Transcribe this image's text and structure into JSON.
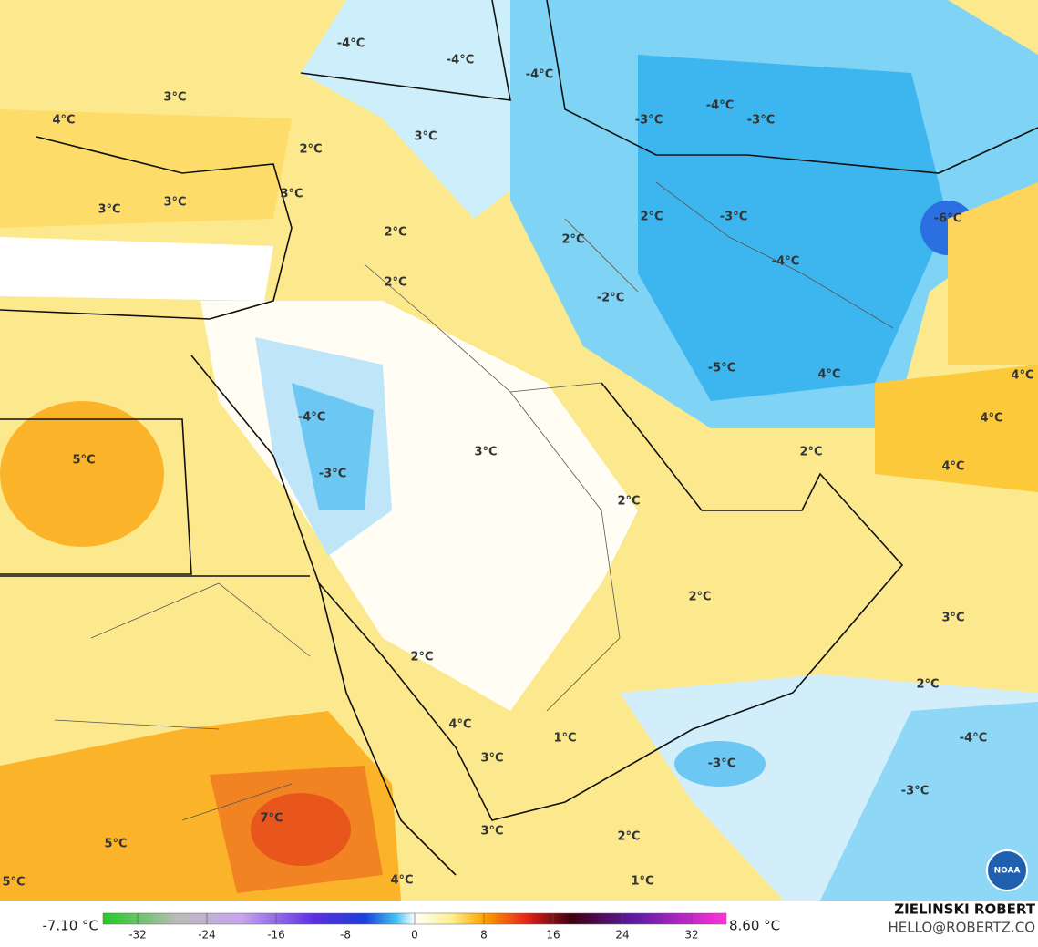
{
  "labels": [
    "-4°C",
    "-4°C",
    "-4°C",
    "3°C",
    "4°C",
    "-4°C",
    "-3°C",
    "-3°C",
    "2°C",
    "3°C",
    "3°C",
    "3°C",
    "3°C",
    "2°C",
    "-3°C",
    "-6°C",
    "2°C",
    "2°C",
    "-4°C",
    "2°C",
    "-2°C",
    "-5°C",
    "4°C",
    "4°C",
    "-4°C",
    "4°C",
    "5°C",
    "3°C",
    "2°C",
    "4°C",
    "-3°C",
    "2°C",
    "2°C",
    "3°C",
    "2°C",
    "2°C",
    "4°C",
    "1°C",
    "-4°C",
    "3°C",
    "-3°C",
    "-3°C",
    "7°C",
    "5°C",
    "3°C",
    "2°C",
    "5°C",
    "4°C",
    "1°C"
  ],
  "colorbar": {
    "min_label": "-7.10 °C",
    "max_label": "8.60 °C",
    "range": [
      -36,
      36
    ],
    "ticks": [
      -32,
      -24,
      -16,
      -8,
      0,
      8,
      16,
      24,
      32
    ]
  },
  "credit": {
    "name": "ZIELINSKI ROBERT",
    "contact": "HELLO@ROBERTZ.CO",
    "logo": "NOAA"
  }
}
